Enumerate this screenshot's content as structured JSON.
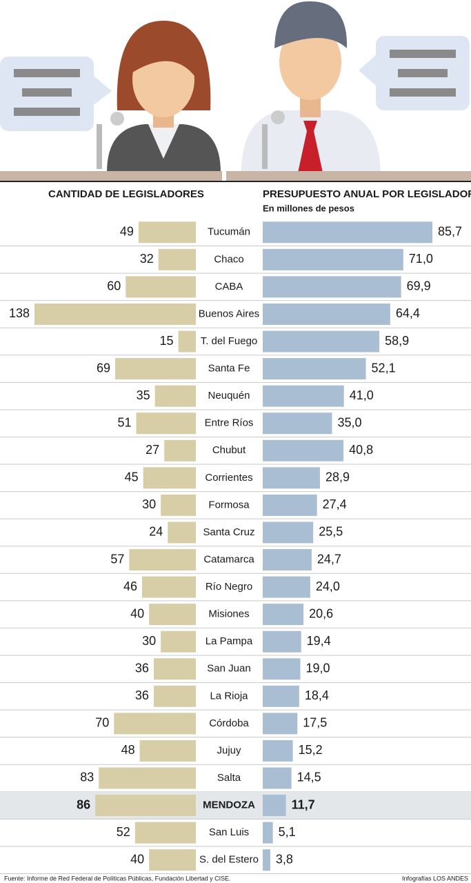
{
  "chart_data": {
    "type": "butterfly-bar",
    "categories": [
      "Tucumán",
      "Chaco",
      "CABA",
      "Buenos Aires",
      "T. del Fuego",
      "Santa Fe",
      "Neuquén",
      "Entre Ríos",
      "Chubut",
      "Corrientes",
      "Formosa",
      "Santa Cruz",
      "Catamarca",
      "Río Negro",
      "Misiones",
      "La Pampa",
      "San Juan",
      "La Rioja",
      "Córdoba",
      "Jujuy",
      "Salta",
      "MENDOZA",
      "San Luis",
      "S. del Estero"
    ],
    "series": [
      {
        "name": "CANTIDAD DE LEGISLADORES",
        "color": "#d7cda6",
        "values": [
          49,
          32,
          60,
          138,
          15,
          69,
          35,
          51,
          27,
          45,
          30,
          24,
          57,
          46,
          40,
          30,
          36,
          36,
          70,
          48,
          83,
          86,
          52,
          40
        ]
      },
      {
        "name": "PRESUPUESTO ANUAL POR LEGISLADOR",
        "subtitle": "En millones de pesos",
        "color": "#a9bed2",
        "values": [
          85.7,
          71.0,
          69.9,
          64.4,
          58.9,
          52.1,
          41.0,
          35.0,
          40.8,
          28.9,
          27.4,
          25.5,
          24.7,
          24.0,
          20.6,
          19.4,
          19.0,
          18.4,
          17.5,
          15.2,
          14.5,
          11.7,
          5.1,
          3.8
        ],
        "value_labels": [
          "85,7",
          "71,0",
          "69,9",
          "64,4",
          "58,9",
          "52,1",
          "41,0",
          "35,0",
          "40,8",
          "28,9",
          "27,4",
          "25,5",
          "24,7",
          "24,0",
          "20,6",
          "19,4",
          "19,0",
          "18,4",
          "17,5",
          "15,2",
          "14,5",
          "11,7",
          "5,1",
          "3,8"
        ]
      }
    ],
    "highlight": "MENDOZA",
    "source": "Fuente: Informe de Red Federal de Políticas Públicas, Fundación Libertad y CISE.",
    "credit": "Infografías LOS ANDES"
  }
}
